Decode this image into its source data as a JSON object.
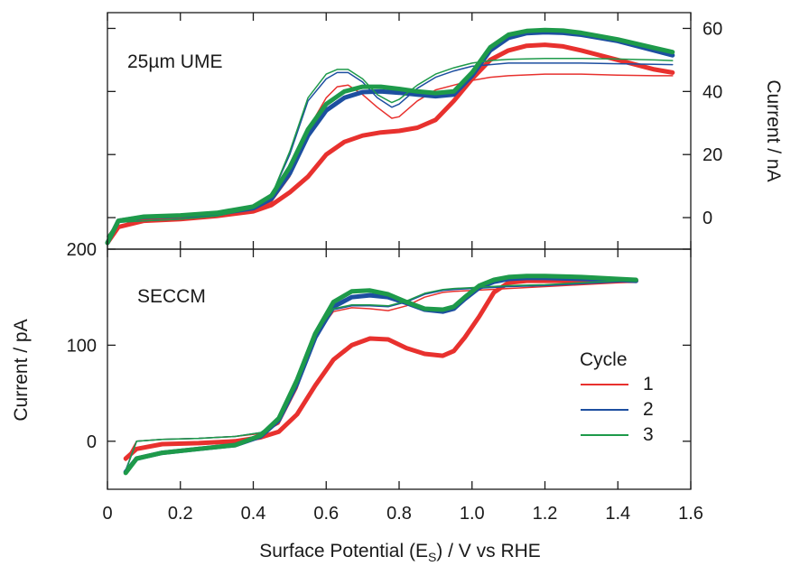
{
  "figure": {
    "xlabel_parts": [
      "Surface Potential (E",
      "S",
      ") / V vs RHE"
    ],
    "legend": {
      "title": "Cycle",
      "entries": [
        "1",
        "2",
        "3"
      ]
    }
  },
  "colors": {
    "cycle1": "#e8312e",
    "cycle2": "#1d4fa0",
    "cycle3": "#1e9a4a",
    "axis": "#1a1a1a"
  },
  "chart_data": [
    {
      "type": "line",
      "panel": "top",
      "label": "25µm UME",
      "ylabel": "Current / nA",
      "yaxis_side": "right",
      "xlim": [
        0,
        1.6
      ],
      "ylim": [
        -10,
        65
      ],
      "yticks": [
        0,
        20,
        40,
        60
      ],
      "xticks": [
        0,
        0.2,
        0.4,
        0.6,
        0.8,
        1.0,
        1.2,
        1.4,
        1.6
      ],
      "series": [
        {
          "name": "1",
          "color": "#e8312e",
          "curves": [
            {
              "weight": "thick",
              "x": [
                0.0,
                0.03,
                0.1,
                0.2,
                0.3,
                0.4,
                0.45,
                0.5,
                0.55,
                0.6,
                0.65,
                0.7,
                0.75,
                0.8,
                0.85,
                0.9,
                0.95,
                1.0,
                1.05,
                1.1,
                1.15,
                1.2,
                1.25,
                1.3,
                1.4,
                1.5,
                1.55
              ],
              "y": [
                -8,
                -3,
                -1,
                -0.5,
                0.5,
                2,
                4,
                8,
                13,
                20,
                24,
                26,
                27,
                27.5,
                28.5,
                31,
                37,
                44,
                50,
                53,
                54.5,
                54.8,
                54.3,
                53,
                50,
                47,
                46
              ]
            },
            {
              "weight": "thin",
              "x": [
                0.0,
                0.03,
                0.1,
                0.2,
                0.3,
                0.4,
                0.45,
                0.5,
                0.55,
                0.6,
                0.63,
                0.66,
                0.7,
                0.74,
                0.78,
                0.8,
                0.85,
                0.9,
                0.95,
                1.0,
                1.05,
                1.1,
                1.2,
                1.3,
                1.4,
                1.5,
                1.55
              ],
              "y": [
                -6,
                -1,
                0,
                0.5,
                1,
                2.5,
                5,
                13,
                28,
                38,
                41.5,
                42,
                39,
                35,
                31.5,
                32,
                37,
                40.5,
                42,
                43.5,
                44.5,
                45,
                45.5,
                45.5,
                45.2,
                45,
                45
              ]
            }
          ]
        },
        {
          "name": "2",
          "color": "#1d4fa0",
          "curves": [
            {
              "weight": "thick",
              "x": [
                0.0,
                0.03,
                0.1,
                0.2,
                0.3,
                0.4,
                0.45,
                0.5,
                0.55,
                0.6,
                0.65,
                0.7,
                0.75,
                0.8,
                0.85,
                0.9,
                0.95,
                1.0,
                1.05,
                1.1,
                1.15,
                1.2,
                1.25,
                1.3,
                1.4,
                1.5,
                1.55
              ],
              "y": [
                -8,
                -1,
                0.2,
                0.6,
                1.2,
                3,
                6,
                14,
                26,
                34,
                38,
                39.8,
                40,
                39.6,
                39,
                38.5,
                39,
                45,
                53,
                57,
                58.5,
                58.8,
                58.6,
                58,
                56,
                53,
                51.5
              ]
            },
            {
              "weight": "thin",
              "x": [
                0.0,
                0.03,
                0.1,
                0.2,
                0.3,
                0.4,
                0.45,
                0.5,
                0.55,
                0.6,
                0.63,
                0.66,
                0.7,
                0.74,
                0.78,
                0.8,
                0.85,
                0.9,
                0.95,
                1.0,
                1.05,
                1.1,
                1.2,
                1.3,
                1.4,
                1.5,
                1.55
              ],
              "y": [
                -6,
                -1.5,
                -1,
                -0.5,
                0.5,
                3,
                7,
                20,
                37,
                44,
                46,
                46,
                43,
                38,
                35,
                36,
                41,
                44.5,
                46.5,
                48,
                48.5,
                49,
                49,
                49,
                48.8,
                48.6,
                48.5
              ]
            }
          ]
        },
        {
          "name": "3",
          "color": "#1e9a4a",
          "curves": [
            {
              "weight": "thick",
              "x": [
                0.0,
                0.03,
                0.1,
                0.2,
                0.3,
                0.4,
                0.45,
                0.5,
                0.55,
                0.6,
                0.65,
                0.7,
                0.75,
                0.8,
                0.85,
                0.9,
                0.95,
                1.0,
                1.05,
                1.1,
                1.15,
                1.2,
                1.25,
                1.3,
                1.4,
                1.5,
                1.55
              ],
              "y": [
                -8,
                -1,
                0.3,
                0.7,
                1.5,
                3.5,
                7,
                16,
                28,
                36,
                40,
                41.5,
                41.5,
                40.8,
                40,
                39.5,
                40,
                46,
                54,
                58,
                59.2,
                59.5,
                59.3,
                58.6,
                56.5,
                53.8,
                52.5
              ]
            },
            {
              "weight": "thin",
              "x": [
                0.0,
                0.03,
                0.1,
                0.2,
                0.3,
                0.4,
                0.45,
                0.5,
                0.55,
                0.6,
                0.63,
                0.66,
                0.7,
                0.74,
                0.78,
                0.8,
                0.85,
                0.9,
                0.95,
                1.0,
                1.05,
                1.1,
                1.2,
                1.3,
                1.4,
                1.5,
                1.55
              ],
              "y": [
                -6,
                -1.5,
                -1,
                -0.5,
                0.5,
                3,
                7,
                21,
                38,
                45.5,
                47,
                47,
                44,
                39,
                36.5,
                37.5,
                42,
                45.5,
                47.5,
                49,
                49.8,
                50.2,
                50.5,
                50.5,
                50.3,
                50,
                49.8
              ]
            }
          ]
        }
      ]
    },
    {
      "type": "line",
      "panel": "bottom",
      "label": "SECCM",
      "ylabel": "Current / pA",
      "yaxis_side": "left",
      "xlim": [
        0,
        1.6
      ],
      "ylim": [
        -50,
        200
      ],
      "yticks": [
        0,
        100,
        200
      ],
      "xticks": [
        0,
        0.2,
        0.4,
        0.6,
        0.8,
        1.0,
        1.2,
        1.4,
        1.6
      ],
      "series": [
        {
          "name": "1",
          "color": "#e8312e",
          "curves": [
            {
              "weight": "thick",
              "x": [
                0.05,
                0.08,
                0.15,
                0.25,
                0.35,
                0.42,
                0.47,
                0.52,
                0.57,
                0.62,
                0.67,
                0.72,
                0.77,
                0.82,
                0.87,
                0.92,
                0.95,
                0.98,
                1.02,
                1.06,
                1.1,
                1.15,
                1.2,
                1.3,
                1.4,
                1.45
              ],
              "y": [
                -18,
                -8,
                -3,
                -2,
                0,
                4,
                10,
                28,
                58,
                85,
                100,
                107,
                106,
                97,
                91,
                89,
                94,
                108,
                130,
                155,
                165,
                167,
                167,
                167,
                167,
                167
              ]
            },
            {
              "weight": "thin",
              "x": [
                0.05,
                0.08,
                0.15,
                0.25,
                0.35,
                0.42,
                0.47,
                0.52,
                0.57,
                0.62,
                0.67,
                0.72,
                0.77,
                0.82,
                0.87,
                0.92,
                0.95,
                1.0,
                1.05,
                1.1,
                1.2,
                1.3,
                1.4,
                1.45
              ],
              "y": [
                -20,
                0,
                2,
                3,
                5,
                8,
                18,
                55,
                110,
                135,
                139,
                138,
                136,
                141,
                150,
                155,
                156,
                157,
                158,
                159,
                161,
                163,
                165,
                166
              ]
            }
          ]
        },
        {
          "name": "2",
          "color": "#1d4fa0",
          "curves": [
            {
              "weight": "thick",
              "x": [
                0.05,
                0.08,
                0.15,
                0.25,
                0.35,
                0.42,
                0.47,
                0.52,
                0.57,
                0.62,
                0.67,
                0.72,
                0.77,
                0.82,
                0.87,
                0.92,
                0.95,
                0.98,
                1.02,
                1.06,
                1.1,
                1.15,
                1.2,
                1.3,
                1.4,
                1.45
              ],
              "y": [
                -32,
                -18,
                -12,
                -8,
                -4,
                5,
                22,
                60,
                108,
                140,
                150,
                152,
                150,
                144,
                137,
                135,
                138,
                148,
                160,
                166,
                169,
                170,
                170,
                169,
                168,
                167
              ]
            },
            {
              "weight": "thin",
              "x": [
                0.05,
                0.08,
                0.15,
                0.25,
                0.35,
                0.42,
                0.47,
                0.52,
                0.57,
                0.62,
                0.67,
                0.72,
                0.77,
                0.82,
                0.87,
                0.92,
                0.95,
                1.0,
                1.05,
                1.1,
                1.2,
                1.3,
                1.4,
                1.45
              ],
              "y": [
                -30,
                0,
                2,
                3,
                5,
                9,
                22,
                60,
                112,
                137,
                141,
                141,
                140,
                145,
                153,
                157,
                158,
                159,
                160,
                161,
                162,
                164,
                166,
                167
              ]
            }
          ]
        },
        {
          "name": "3",
          "color": "#1e9a4a",
          "curves": [
            {
              "weight": "thick",
              "x": [
                0.05,
                0.08,
                0.15,
                0.25,
                0.35,
                0.42,
                0.47,
                0.52,
                0.57,
                0.62,
                0.67,
                0.72,
                0.77,
                0.82,
                0.87,
                0.92,
                0.95,
                0.98,
                1.02,
                1.06,
                1.1,
                1.15,
                1.2,
                1.3,
                1.4,
                1.45
              ],
              "y": [
                -33,
                -18,
                -12,
                -8,
                -4,
                6,
                24,
                64,
                112,
                145,
                156,
                157,
                153,
                145,
                138,
                137,
                140,
                150,
                162,
                168,
                171,
                172,
                172,
                171,
                169,
                168
              ]
            },
            {
              "weight": "thin",
              "x": [
                0.05,
                0.08,
                0.15,
                0.25,
                0.35,
                0.42,
                0.47,
                0.52,
                0.57,
                0.62,
                0.67,
                0.72,
                0.77,
                0.82,
                0.87,
                0.92,
                0.95,
                1.0,
                1.05,
                1.1,
                1.2,
                1.3,
                1.4,
                1.45
              ],
              "y": [
                -31,
                0,
                2,
                3,
                5,
                9,
                22,
                60,
                112,
                138,
                142,
                142,
                141,
                146,
                154,
                158,
                159,
                160,
                161,
                162,
                163,
                165,
                167,
                168
              ]
            }
          ]
        }
      ]
    }
  ]
}
